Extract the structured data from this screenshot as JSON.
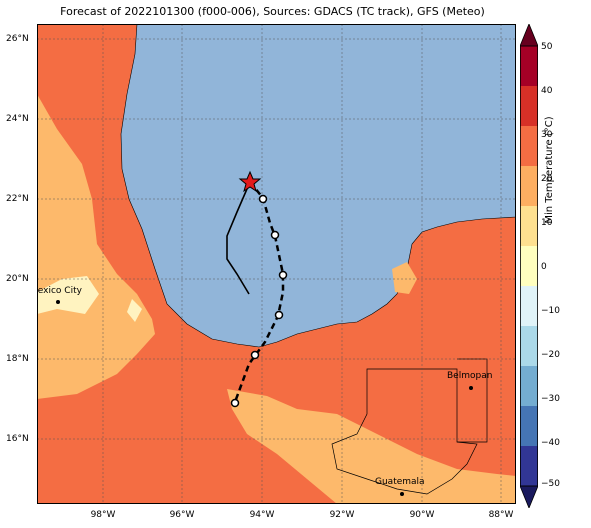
{
  "title": "Forecast of 2022101300 (f000-006), Sources: GDACS (TC track), GFS (Meteo)",
  "colorbar": {
    "label": "Min Temperature (°C)",
    "ticks": [
      "50",
      "40",
      "30",
      "20",
      "10",
      "0",
      "−10",
      "−20",
      "−30",
      "−40",
      "−50"
    ],
    "colors": [
      "#a50026",
      "#d73027",
      "#f46d43",
      "#fdae61",
      "#fee090",
      "#ffffbf",
      "#e0f3f8",
      "#abd9e9",
      "#74add1",
      "#4575b4",
      "#313695"
    ]
  },
  "axes": {
    "lat_labels": [
      "26°N",
      "24°N",
      "22°N",
      "20°N",
      "18°N",
      "16°N"
    ],
    "lon_labels": [
      "98°W",
      "96°W",
      "94°W",
      "92°W",
      "90°W",
      "88°W"
    ]
  },
  "colors": {
    "water": "#91b5d9",
    "land_warm": "#f46d43",
    "land_mild": "#fdb96b",
    "land_cool": "#fff3c0",
    "storm_marker": "#e31a1c"
  },
  "cities": [
    {
      "name": "Mexico City"
    },
    {
      "name": "Belmopan"
    },
    {
      "name": "Guatemala"
    }
  ],
  "storm": {
    "current_position": {
      "lat": 22.4,
      "lon": -94.3
    },
    "forecast_track": [
      {
        "lat": 22.4,
        "lon": -94.3
      },
      {
        "lat": 22.0,
        "lon": -94.0
      },
      {
        "lat": 21.1,
        "lon": -93.7
      },
      {
        "lat": 20.1,
        "lon": -93.5
      },
      {
        "lat": 19.1,
        "lon": -93.6
      },
      {
        "lat": 18.1,
        "lon": -94.2
      },
      {
        "lat": 16.9,
        "lon": -94.7
      }
    ],
    "past_track": [
      {
        "lat": 22.4,
        "lon": -94.3
      },
      {
        "lat": 21.8,
        "lon": -94.6
      },
      {
        "lat": 21.1,
        "lon": -94.9
      },
      {
        "lat": 20.5,
        "lon": -94.9
      },
      {
        "lat": 19.6,
        "lon": -94.4
      }
    ]
  }
}
